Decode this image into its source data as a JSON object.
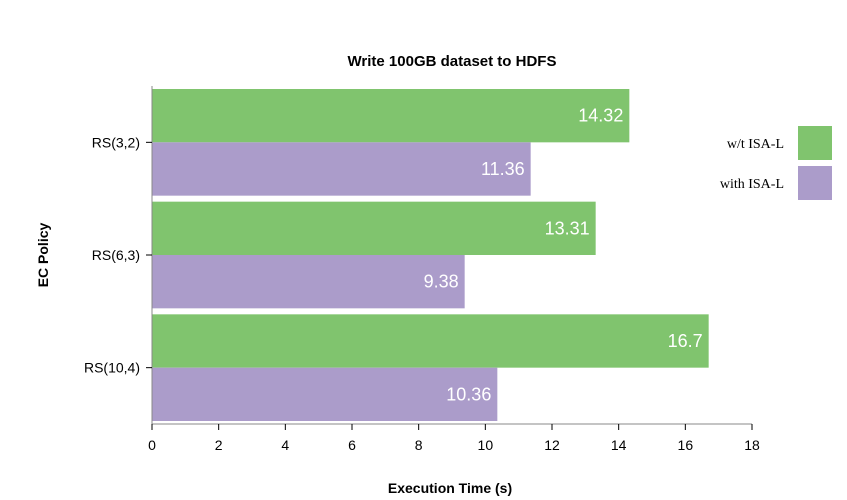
{
  "chart_data": {
    "type": "bar",
    "orientation": "horizontal",
    "title": "Write 100GB dataset to HDFS",
    "xlabel": "Execution Time (s)",
    "ylabel": "EC Policy",
    "categories": [
      "RS(3,2)",
      "RS(6,3)",
      "RS(10,4)"
    ],
    "series": [
      {
        "name": "w/t ISA-L",
        "values": [
          14.32,
          13.31,
          16.7
        ],
        "color": "#80c46e"
      },
      {
        "name": "with ISA-L",
        "values": [
          11.36,
          9.38,
          10.36
        ],
        "color": "#ab9cca"
      }
    ],
    "xlim": [
      0,
      18
    ],
    "xticks": [
      0,
      2,
      4,
      6,
      8,
      10,
      12,
      14,
      16,
      18
    ],
    "data_labels": true,
    "grid": false,
    "legend_position": "right"
  }
}
